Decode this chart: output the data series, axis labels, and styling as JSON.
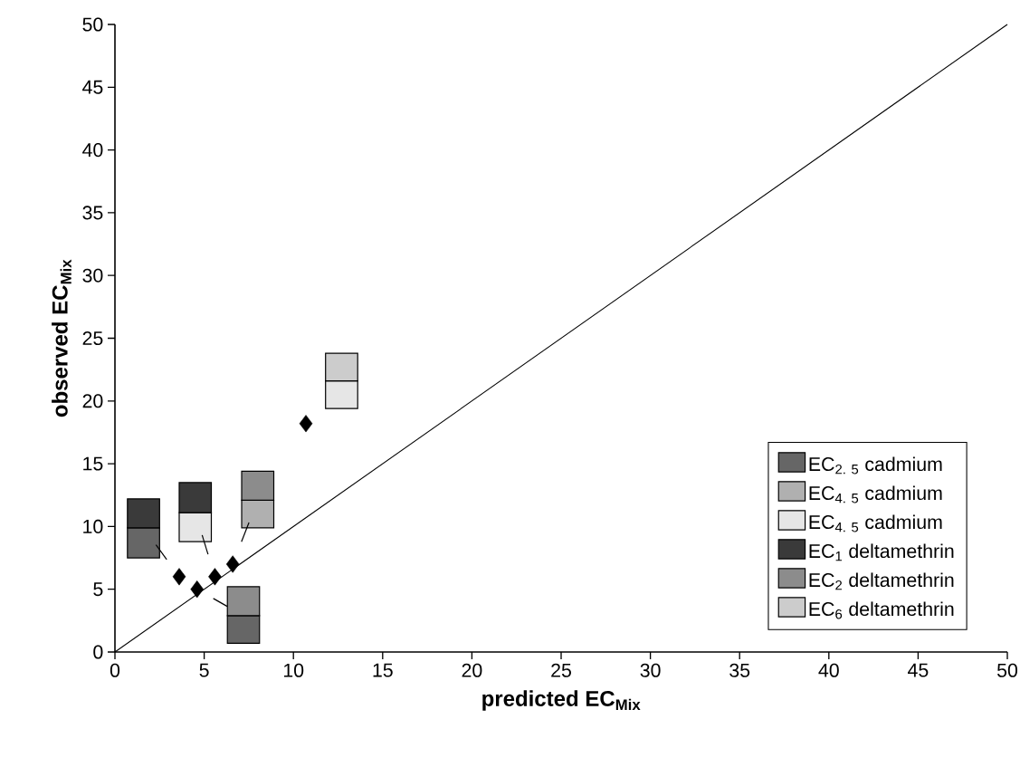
{
  "chart_data": {
    "type": "bar",
    "xlabel": "predicted EC$_{Mix}$",
    "ylabel": "observed EC$_{Mix}$",
    "xlim": [
      0,
      50
    ],
    "ylim": [
      0,
      50
    ],
    "xticks": [
      0,
      5,
      10,
      15,
      20,
      25,
      30,
      35,
      40,
      45,
      50
    ],
    "yticks": [
      0,
      5,
      10,
      15,
      20,
      25,
      30,
      35,
      40,
      45,
      50
    ],
    "legend": "bottom right",
    "series": [
      {
        "name": "EC$_{2. 5}$ cadmium",
        "color": "#666666",
        "x": [
          1.6,
          7.2
        ],
        "base": [
          7.5,
          0.7
        ],
        "values": [
          2.4,
          2.2
        ]
      },
      {
        "name": "EC$_{4. 5}$ cadmium",
        "color": "#b0b0b0",
        "x": [
          8.0
        ],
        "base": [
          9.9
        ],
        "values": [
          2.2
        ]
      },
      {
        "name": "EC$_{4. 5}$ cadmium",
        "color": "#e6e6e6",
        "x": [
          4.5,
          12.7
        ],
        "base": [
          8.8,
          19.4
        ],
        "values": [
          2.3,
          2.2
        ]
      },
      {
        "name": "EC$_{1}$ deltamethrin",
        "color": "#3a3a3a",
        "x": [
          1.6,
          4.5
        ],
        "base": [
          9.9,
          11.1
        ],
        "values": [
          2.3,
          2.4
        ]
      },
      {
        "name": "EC$_{2}$ deltamethrin",
        "color": "#8c8c8c",
        "x": [
          8.0,
          7.2
        ],
        "base": [
          12.1,
          2.9
        ],
        "values": [
          2.3,
          2.3
        ]
      },
      {
        "name": "EC$_{6}$ deltamethrin",
        "color": "#cccccc",
        "x": [
          12.7
        ],
        "base": [
          21.6
        ],
        "values": [
          2.2
        ]
      },
      {
        "type": "scatter",
        "color": "#000000",
        "marker": "diamond",
        "x": [
          3.6,
          4.6,
          5.6,
          6.6,
          10.7
        ],
        "values": [
          6.0,
          5.0,
          6.0,
          7.0,
          18.2
        ]
      },
      {
        "type": "line",
        "color": "#000000",
        "x": [
          0,
          50
        ],
        "values": [
          0,
          50
        ]
      }
    ]
  }
}
